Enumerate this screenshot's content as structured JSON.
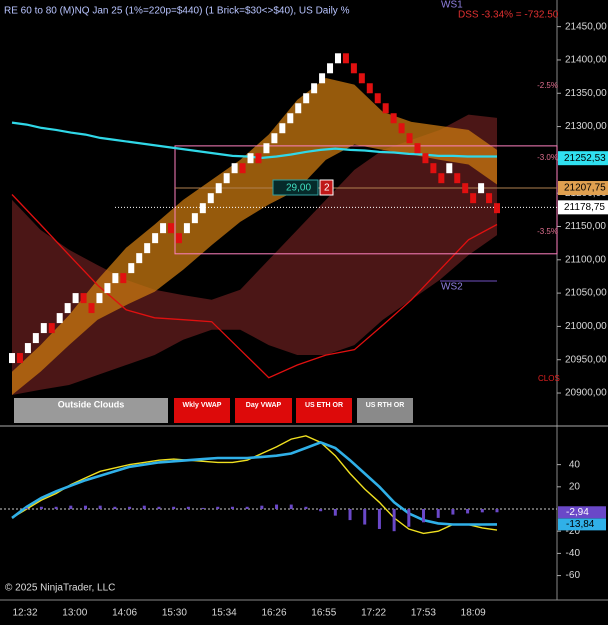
{
  "header": {
    "title": "RE 60 to 80 (M)NQ Jan 25 (1%=220p=$440) (1 Brick=$30<>$40), US Daily %",
    "copyright": "© 2025 NinjaTrader, LLC"
  },
  "x_axis": {
    "labels": [
      "12:32",
      "13:00",
      "14:06",
      "15:30",
      "15:34",
      "16:26",
      "16:55",
      "17:22",
      "17:53",
      "18:09"
    ]
  },
  "buttons": [
    "Outside Clouds",
    "Wkly VWAP",
    "Day VWAP",
    "US ETH OR",
    "US RTH OR"
  ],
  "chart_data": [
    {
      "type": "renko",
      "ylim": [
        20852,
        21490
      ],
      "yticks": [
        {
          "value": 21450,
          "label": "21450,00"
        },
        {
          "value": 21400,
          "label": "21400,00"
        },
        {
          "value": 21350,
          "label": "21350,00"
        },
        {
          "value": 21300,
          "label": "21300,00"
        },
        {
          "value": 21250,
          "label": "21250,00"
        },
        {
          "value": 21200,
          "label": "21200,00"
        },
        {
          "value": 21150,
          "label": "21150,00"
        },
        {
          "value": 21100,
          "label": "21100,00"
        },
        {
          "value": 21050,
          "label": "21050,00"
        },
        {
          "value": 21000,
          "label": "21000,00"
        },
        {
          "value": 20950,
          "label": "20950,00"
        },
        {
          "value": 20900,
          "label": "20900,00"
        }
      ],
      "bricks": {
        "up_color": "#ffffff",
        "down_color": "#e01010",
        "open": [
          20945,
          20960,
          20960,
          20975,
          20990,
          21005,
          21005,
          21020,
          21035,
          21050,
          21035,
          21035,
          21050,
          21065,
          21080,
          21080,
          21095,
          21110,
          21125,
          21140,
          21155,
          21140,
          21140,
          21155,
          21170,
          21185,
          21200,
          21215,
          21230,
          21245,
          21245,
          21260,
          21260,
          21275,
          21290,
          21305,
          21320,
          21335,
          21350,
          21365,
          21380,
          21395,
          21410,
          21395,
          21380,
          21365,
          21350,
          21335,
          21320,
          21305,
          21290,
          21275,
          21260,
          21245,
          21230,
          21230,
          21230,
          21215,
          21200,
          21200,
          21200,
          21185
        ],
        "close": [
          20960,
          20945,
          20975,
          20990,
          21005,
          20990,
          21020,
          21035,
          21050,
          21035,
          21020,
          21050,
          21065,
          21080,
          21065,
          21095,
          21110,
          21125,
          21140,
          21155,
          21140,
          21125,
          21155,
          21170,
          21185,
          21200,
          21215,
          21230,
          21245,
          21230,
          21260,
          21245,
          21275,
          21290,
          21305,
          21320,
          21335,
          21350,
          21365,
          21380,
          21395,
          21410,
          21395,
          21380,
          21365,
          21350,
          21335,
          21320,
          21305,
          21290,
          21275,
          21260,
          21245,
          21230,
          21215,
          21245,
          21215,
          21200,
          21185,
          21215,
          21185,
          21170
        ]
      },
      "clouds": [
        {
          "color": "#5e1c1c",
          "upper": [
            21190,
            21145,
            21115,
            21092,
            21070,
            21055,
            21047,
            21040,
            21055,
            21100,
            21145,
            21190,
            21235,
            21265,
            21280,
            21295,
            21318,
            21313
          ],
          "lower": [
            20897,
            20905,
            20912,
            20927,
            20942,
            20957,
            20980,
            20995,
            20995,
            20972,
            20957,
            20957,
            20972,
            21010,
            21040,
            21070,
            21107,
            21137
          ]
        },
        {
          "color": "#c87810",
          "upper": [
            20932,
            20972,
            21017,
            21070,
            21118,
            21153,
            21190,
            21220,
            21250,
            21288,
            21340,
            21373,
            21363,
            21322,
            21307,
            21301,
            21295,
            21265
          ],
          "lower": [
            20897,
            20932,
            20972,
            21010,
            21032,
            21052,
            21085,
            21122,
            21157,
            21183,
            21205,
            21250,
            21273,
            21265,
            21258,
            21250,
            21243,
            21213
          ]
        }
      ],
      "red_line": {
        "color": "#e01010",
        "values": [
          21198,
          21153,
          21107,
          21062,
          21025,
          21013,
          21010,
          21007,
          20965,
          20923,
          20942,
          20957,
          20965,
          21002,
          21040,
          21085,
          21130,
          21153
        ]
      },
      "ma": {
        "color": "#30d8e8",
        "values": [
          21306,
          21303,
          21298,
          21295,
          21291,
          21288,
          21283,
          21280,
          21277,
          21274,
          21271,
          21268,
          21265,
          21262,
          21259,
          21256,
          21255,
          21253,
          21255,
          21258,
          21262,
          21265,
          21267,
          21265,
          21264,
          21262,
          21261,
          21259,
          21258,
          21256,
          21256,
          21255,
          21255,
          21255
        ]
      },
      "range_box": [
        21109,
        21271
      ],
      "levels": [
        {
          "value": 21252.53,
          "label": "21252,53",
          "color": "#30e0f0"
        },
        {
          "value": 21207.75,
          "label": "21207,75",
          "color": "#e0a050"
        },
        {
          "value": 21178.75,
          "label": "21178,75",
          "color": "#ffffff"
        }
      ],
      "annotations": {
        "pct": [
          "-2.5%",
          "-3.0%",
          "-3.5%"
        ],
        "ws1": "WS1",
        "ws2": "WS2",
        "dss": "DSS -3.34% = -732.50",
        "clos": "CLOS"
      },
      "order": {
        "qty": "29,00",
        "count": "2"
      }
    },
    {
      "type": "line",
      "ylim": [
        -82,
        73
      ],
      "yticks": [
        40,
        20,
        -20,
        -40,
        -60
      ],
      "series": [
        {
          "color": "#f0e020",
          "values": [
            -8,
            0,
            8,
            14,
            22,
            28,
            34,
            37,
            40,
            42,
            44,
            45,
            44,
            43,
            42,
            42,
            44,
            50,
            56,
            63,
            66,
            60,
            48,
            32,
            18,
            6,
            -8,
            -18,
            -22,
            -20,
            -14,
            -14,
            -17,
            -19
          ]
        },
        {
          "color": "#30b0e8",
          "values": [
            -8,
            2,
            10,
            16,
            21,
            26,
            30,
            34,
            38,
            40,
            42,
            43,
            44,
            45,
            46,
            46,
            46,
            47,
            48,
            50,
            55,
            60,
            55,
            44,
            32,
            20,
            6,
            -4,
            -10,
            -13,
            -14,
            -14,
            -14,
            -13.84
          ],
          "value_labels": [
            null,
            null,
            null,
            null,
            null,
            null,
            null,
            null,
            null,
            null,
            null,
            null,
            null,
            null,
            null,
            null,
            null,
            null,
            null,
            null,
            null,
            null,
            null,
            null,
            null,
            null,
            null,
            null,
            null,
            null,
            null,
            null,
            null,
            "-13,84"
          ]
        },
        {
          "style": "bar",
          "color": "#6a48c8",
          "values": [
            0,
            1,
            2,
            2,
            3,
            3,
            3,
            2,
            2,
            3,
            2,
            2,
            2,
            1,
            2,
            2,
            2,
            3,
            4,
            4,
            2,
            -2,
            -6,
            -10,
            -14,
            -18,
            -20,
            -16,
            -12,
            -8,
            -5,
            -4,
            -3,
            -2.94
          ],
          "value_labels": [
            null,
            null,
            null,
            null,
            null,
            null,
            null,
            null,
            null,
            null,
            null,
            null,
            null,
            null,
            null,
            null,
            null,
            null,
            null,
            null,
            null,
            null,
            null,
            null,
            null,
            null,
            null,
            null,
            null,
            null,
            null,
            null,
            null,
            "-2,94"
          ]
        }
      ]
    }
  ]
}
